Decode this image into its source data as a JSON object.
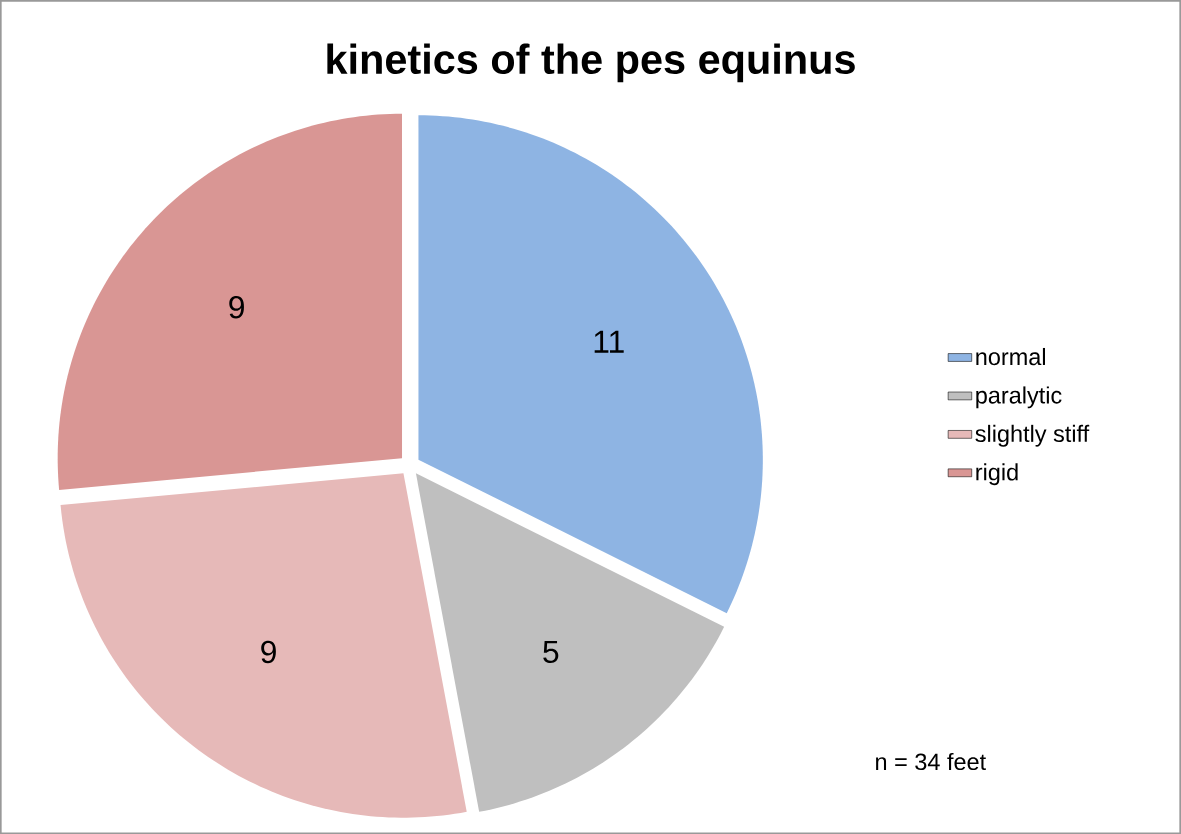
{
  "chart_data": {
    "type": "pie",
    "title": "kinetics of the pes equinus",
    "categories": [
      "normal",
      "paralytic",
      "slightly stiff",
      "rigid"
    ],
    "values": [
      11,
      5,
      9,
      9
    ],
    "colors": [
      "#8eb4e3",
      "#bfbfbf",
      "#e6b9b8",
      "#d99694"
    ],
    "data_labels": true,
    "legend": "right",
    "annotations": [
      "n = 34 feet"
    ]
  }
}
